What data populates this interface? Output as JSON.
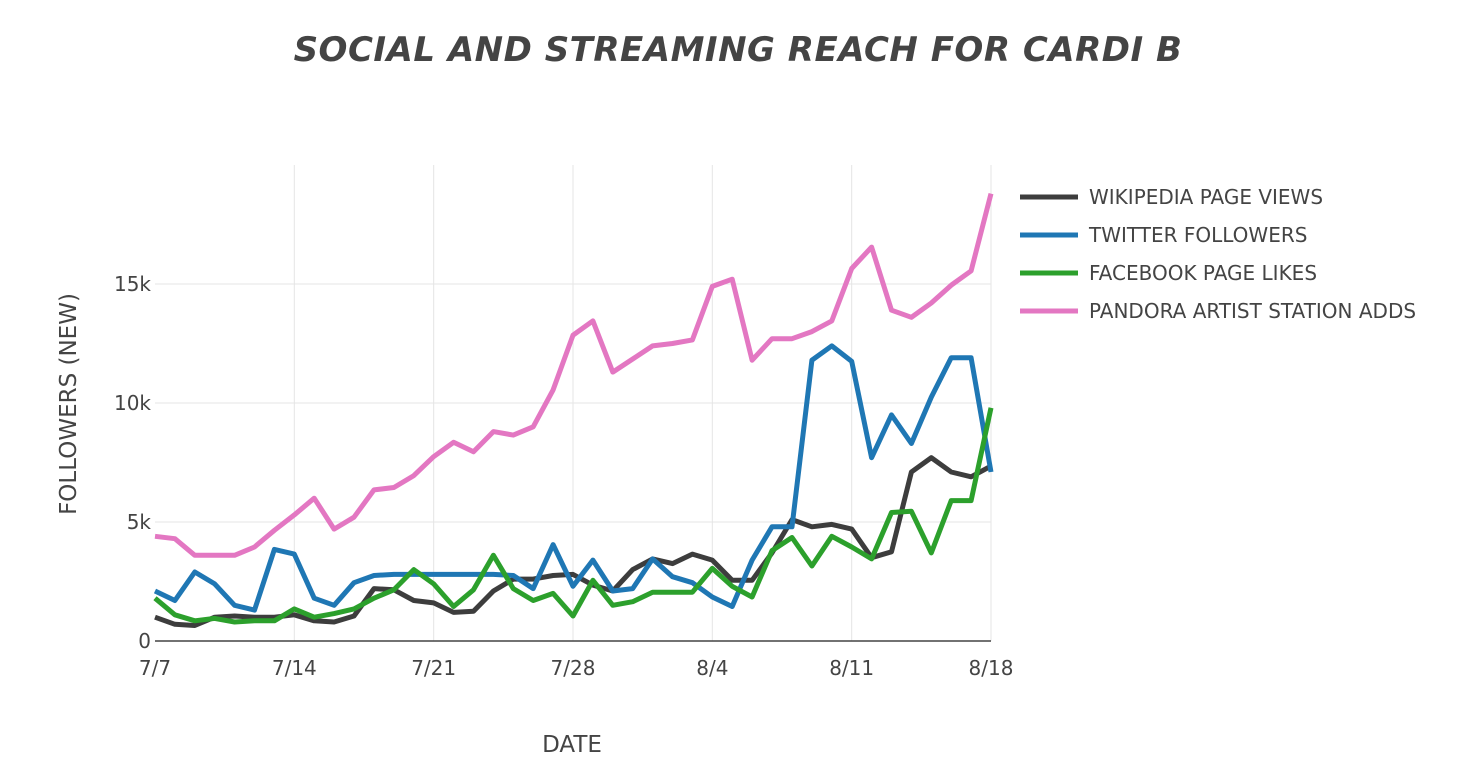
{
  "chart_data": {
    "type": "line",
    "title": "SOCIAL AND STREAMING REACH FOR CARDI B",
    "xlabel": "DATE",
    "ylabel": "FOLLOWERS (NEW)",
    "ylim": [
      0,
      20000
    ],
    "yticks": [
      {
        "value": 0,
        "label": "0"
      },
      {
        "value": 5000,
        "label": "5k"
      },
      {
        "value": 10000,
        "label": "10k"
      },
      {
        "value": 15000,
        "label": "15k"
      }
    ],
    "xticks": [
      {
        "index": 0,
        "label": "7/7"
      },
      {
        "index": 7,
        "label": "7/14"
      },
      {
        "index": 14,
        "label": "7/21"
      },
      {
        "index": 21,
        "label": "7/28"
      },
      {
        "index": 28,
        "label": "8/4"
      },
      {
        "index": 35,
        "label": "8/11"
      },
      {
        "index": 42,
        "label": "8/18"
      }
    ],
    "grid": true,
    "legend_position": "right",
    "series": [
      {
        "name": "WIKIPEDIA PAGE VIEWS",
        "color": "#3d3d3d",
        "values": [
          1000,
          700,
          650,
          1000,
          1050,
          1000,
          1000,
          1100,
          850,
          800,
          1050,
          2200,
          2150,
          1700,
          1600,
          1200,
          1250,
          2100,
          2600,
          2600,
          2750,
          2800,
          2350,
          2100,
          3000,
          3450,
          3250,
          3650,
          3400,
          2550,
          2550,
          3700,
          5100,
          4800,
          4900,
          4700,
          3500,
          3750,
          7100,
          7700,
          7100,
          6900,
          7350
        ]
      },
      {
        "name": "TWITTER FOLLOWERS",
        "color": "#1f77b4",
        "values": [
          2100,
          1700,
          2900,
          2400,
          1500,
          1300,
          3850,
          3650,
          1800,
          1500,
          2450,
          2750,
          2800,
          2800,
          2800,
          2800,
          2800,
          2800,
          2750,
          2200,
          4050,
          2300,
          3400,
          2100,
          2200,
          3450,
          2700,
          2450,
          1850,
          1450,
          3400,
          4800,
          4800,
          11800,
          12400,
          11750,
          7700,
          9500,
          8300,
          10250,
          11900,
          11900,
          7100
        ]
      },
      {
        "name": "FACEBOOK PAGE LIKES",
        "color": "#2ca02c",
        "values": [
          1800,
          1100,
          850,
          950,
          800,
          850,
          850,
          1350,
          1000,
          1150,
          1350,
          1800,
          2150,
          3000,
          2400,
          1450,
          2150,
          3600,
          2200,
          1700,
          2000,
          1050,
          2550,
          1500,
          1650,
          2050,
          2050,
          2050,
          3050,
          2300,
          1850,
          3800,
          4350,
          3150,
          4400,
          3950,
          3450,
          5400,
          5450,
          3700,
          5900,
          5900,
          9800
        ]
      },
      {
        "name": "PANDORA ARTIST STATION ADDS",
        "color": "#e377c2",
        "values": [
          4400,
          4300,
          3600,
          3600,
          3600,
          3950,
          4650,
          5300,
          6000,
          4700,
          5200,
          6350,
          6450,
          6950,
          7750,
          8350,
          7950,
          8800,
          8650,
          9000,
          10550,
          12850,
          13450,
          11300,
          11850,
          12400,
          12500,
          12650,
          14900,
          15200,
          11800,
          12700,
          12700,
          13000,
          13450,
          15650,
          16550,
          13900,
          13600,
          14200,
          14950,
          15550,
          18800
        ]
      }
    ]
  }
}
